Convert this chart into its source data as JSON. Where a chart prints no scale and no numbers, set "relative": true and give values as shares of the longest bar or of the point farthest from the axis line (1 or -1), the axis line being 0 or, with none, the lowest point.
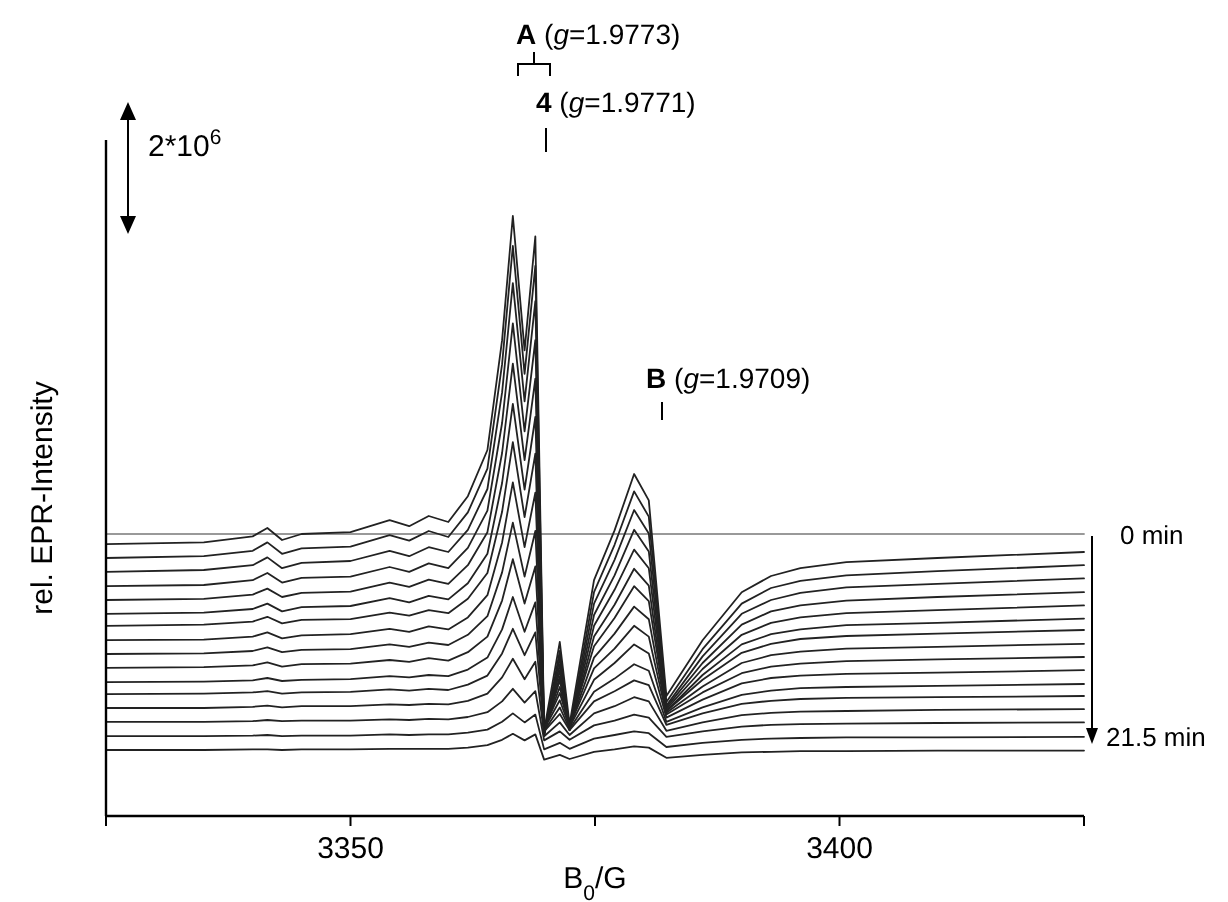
{
  "chart_data": {
    "type": "line",
    "xlabel": "B$_{0}$/G",
    "ylabel": "rel. EPR-Intensity",
    "relative": true,
    "xlim": [
      3325,
      3425
    ],
    "xticks": [
      {
        "value": 3325,
        "label": null
      },
      3350,
      {
        "value": 3375,
        "label": null
      },
      3400,
      {
        "value": 3425,
        "label": null
      }
    ],
    "annotations": [
      "A (g=1.9773)",
      "4 (g=1.9771)",
      "B (g=1.9709)",
      "2*10$^{6}$",
      "0 min",
      "21.5 min"
    ],
    "x": [
      3325,
      3335,
      3340,
      3341.5,
      3343,
      3345,
      3350,
      3354,
      3356,
      3358,
      3360,
      3362,
      3364,
      3365.5,
      3366.6,
      3367.8,
      3368.9,
      3369.8,
      3371.4,
      3372.4,
      3374.9,
      3377,
      3379,
      3380.5,
      3382.3,
      3386,
      3390,
      3393,
      3396,
      3400.7,
      3410,
      3425
    ],
    "series": [
      {
        "color": "#999999",
        "values": [
          0.47,
          0.47,
          0.47,
          0.47,
          0.47,
          0.47,
          0.47,
          0.47,
          0.47,
          0.47,
          0.47,
          0.47,
          0.47,
          0.47,
          0.47,
          0.47,
          0.47,
          0.47,
          0.47,
          0.47,
          0.47,
          0.47,
          0.47,
          0.47,
          0.47,
          0.47,
          0.47,
          0.47,
          0.47,
          0.47,
          0.47,
          0.47
        ]
      },
      {
        "color": "#222222",
        "values": [
          0.453,
          0.456,
          0.466,
          0.48,
          0.46,
          0.47,
          0.473,
          0.493,
          0.483,
          0.5,
          0.49,
          0.533,
          0.61,
          0.793,
          1.0,
          0.776,
          0.966,
          0.143,
          0.29,
          0.153,
          0.393,
          0.476,
          0.57,
          0.526,
          0.2,
          0.293,
          0.373,
          0.4,
          0.413,
          0.423,
          0.43,
          0.44
        ]
      },
      {
        "color": "#222222",
        "values": [
          0.43,
          0.433,
          0.442,
          0.456,
          0.437,
          0.446,
          0.449,
          0.468,
          0.459,
          0.475,
          0.465,
          0.506,
          0.579,
          0.753,
          0.95,
          0.737,
          0.917,
          0.135,
          0.275,
          0.145,
          0.373,
          0.452,
          0.541,
          0.499,
          0.19,
          0.278,
          0.354,
          0.38,
          0.392,
          0.401,
          0.408,
          0.418
        ]
      },
      {
        "color": "#222222",
        "values": [
          0.407,
          0.41,
          0.418,
          0.431,
          0.413,
          0.422,
          0.425,
          0.442,
          0.433,
          0.448,
          0.44,
          0.477,
          0.545,
          0.706,
          0.888,
          0.691,
          0.858,
          0.134,
          0.264,
          0.143,
          0.354,
          0.427,
          0.51,
          0.471,
          0.184,
          0.266,
          0.337,
          0.36,
          0.372,
          0.381,
          0.387,
          0.396
        ]
      },
      {
        "color": "#222222",
        "values": [
          0.383,
          0.385,
          0.393,
          0.405,
          0.389,
          0.397,
          0.399,
          0.415,
          0.407,
          0.421,
          0.413,
          0.447,
          0.509,
          0.655,
          0.821,
          0.641,
          0.793,
          0.135,
          0.253,
          0.143,
          0.335,
          0.401,
          0.477,
          0.441,
          0.181,
          0.255,
          0.319,
          0.341,
          0.351,
          0.359,
          0.365,
          0.373
        ]
      },
      {
        "color": "#222222",
        "values": [
          0.36,
          0.362,
          0.369,
          0.379,
          0.365,
          0.372,
          0.374,
          0.389,
          0.382,
          0.394,
          0.387,
          0.418,
          0.473,
          0.605,
          0.754,
          0.593,
          0.729,
          0.137,
          0.243,
          0.144,
          0.317,
          0.377,
          0.444,
          0.413,
          0.178,
          0.245,
          0.302,
          0.322,
          0.331,
          0.338,
          0.343,
          0.351
        ]
      },
      {
        "color": "#222222",
        "values": [
          0.337,
          0.339,
          0.345,
          0.354,
          0.341,
          0.348,
          0.35,
          0.363,
          0.356,
          0.367,
          0.361,
          0.388,
          0.437,
          0.555,
          0.687,
          0.544,
          0.665,
          0.139,
          0.233,
          0.145,
          0.299,
          0.352,
          0.412,
          0.384,
          0.175,
          0.235,
          0.286,
          0.303,
          0.311,
          0.318,
          0.322,
          0.329
        ]
      },
      {
        "color": "#222222",
        "values": [
          0.317,
          0.319,
          0.324,
          0.332,
          0.321,
          0.327,
          0.328,
          0.339,
          0.334,
          0.343,
          0.338,
          0.362,
          0.405,
          0.507,
          0.623,
          0.498,
          0.604,
          0.143,
          0.226,
          0.149,
          0.283,
          0.33,
          0.383,
          0.358,
          0.175,
          0.227,
          0.272,
          0.287,
          0.295,
          0.3,
          0.304,
          0.31
        ]
      },
      {
        "color": "#222222",
        "values": [
          0.293,
          0.294,
          0.299,
          0.306,
          0.296,
          0.301,
          0.303,
          0.312,
          0.307,
          0.316,
          0.311,
          0.331,
          0.368,
          0.456,
          0.556,
          0.448,
          0.539,
          0.144,
          0.215,
          0.149,
          0.264,
          0.304,
          0.349,
          0.328,
          0.172,
          0.216,
          0.255,
          0.268,
          0.274,
          0.279,
          0.282,
          0.287
        ]
      },
      {
        "color": "#222222",
        "values": [
          0.27,
          0.271,
          0.275,
          0.281,
          0.273,
          0.277,
          0.278,
          0.286,
          0.282,
          0.289,
          0.285,
          0.302,
          0.333,
          0.406,
          0.489,
          0.399,
          0.475,
          0.146,
          0.205,
          0.15,
          0.246,
          0.279,
          0.317,
          0.299,
          0.169,
          0.206,
          0.238,
          0.249,
          0.254,
          0.258,
          0.261,
          0.265
        ]
      },
      {
        "color": "#222222",
        "values": [
          0.247,
          0.248,
          0.251,
          0.256,
          0.249,
          0.253,
          0.254,
          0.26,
          0.257,
          0.263,
          0.259,
          0.273,
          0.299,
          0.359,
          0.428,
          0.354,
          0.416,
          0.145,
          0.193,
          0.148,
          0.227,
          0.255,
          0.286,
          0.271,
          0.164,
          0.194,
          0.221,
          0.23,
          0.234,
          0.237,
          0.239,
          0.243
        ]
      },
      {
        "color": "#222222",
        "values": [
          0.223,
          0.224,
          0.226,
          0.23,
          0.225,
          0.227,
          0.228,
          0.233,
          0.231,
          0.235,
          0.233,
          0.244,
          0.264,
          0.311,
          0.365,
          0.307,
          0.356,
          0.142,
          0.181,
          0.145,
          0.207,
          0.229,
          0.253,
          0.242,
          0.157,
          0.181,
          0.202,
          0.209,
          0.213,
          0.215,
          0.217,
          0.22
        ]
      },
      {
        "color": "#222222",
        "values": [
          0.203,
          0.204,
          0.206,
          0.208,
          0.204,
          0.206,
          0.207,
          0.211,
          0.209,
          0.212,
          0.21,
          0.219,
          0.234,
          0.271,
          0.312,
          0.268,
          0.306,
          0.141,
          0.17,
          0.143,
          0.191,
          0.208,
          0.226,
          0.218,
          0.152,
          0.171,
          0.187,
          0.192,
          0.195,
          0.197,
          0.198,
          0.2
        ]
      },
      {
        "color": "#222222",
        "values": [
          0.18,
          0.18,
          0.182,
          0.184,
          0.181,
          0.183,
          0.183,
          0.186,
          0.185,
          0.187,
          0.186,
          0.192,
          0.204,
          0.231,
          0.262,
          0.228,
          0.257,
          0.133,
          0.156,
          0.135,
          0.171,
          0.183,
          0.198,
          0.191,
          0.142,
          0.156,
          0.168,
          0.172,
          0.174,
          0.175,
          0.177,
          0.178
        ]
      },
      {
        "color": "#222222",
        "values": [
          0.157,
          0.157,
          0.158,
          0.16,
          0.158,
          0.159,
          0.159,
          0.161,
          0.16,
          0.162,
          0.161,
          0.165,
          0.173,
          0.191,
          0.212,
          0.189,
          0.208,
          0.126,
          0.141,
          0.127,
          0.151,
          0.159,
          0.169,
          0.164,
          0.132,
          0.141,
          0.149,
          0.152,
          0.153,
          0.154,
          0.155,
          0.156
        ]
      },
      {
        "color": "#222222",
        "values": [
          0.133,
          0.133,
          0.134,
          0.135,
          0.133,
          0.134,
          0.134,
          0.136,
          0.135,
          0.136,
          0.136,
          0.139,
          0.144,
          0.157,
          0.171,
          0.156,
          0.169,
          0.111,
          0.122,
          0.112,
          0.129,
          0.135,
          0.141,
          0.138,
          0.115,
          0.122,
          0.127,
          0.129,
          0.13,
          0.131,
          0.131,
          0.132
        ]
      },
      {
        "color": "#222222",
        "values": [
          0.11,
          0.11,
          0.111,
          0.111,
          0.11,
          0.111,
          0.111,
          0.112,
          0.112,
          0.112,
          0.112,
          0.114,
          0.118,
          0.127,
          0.137,
          0.126,
          0.136,
          0.094,
          0.102,
          0.095,
          0.107,
          0.111,
          0.116,
          0.114,
          0.097,
          0.102,
          0.106,
          0.107,
          0.108,
          0.108,
          0.109,
          0.109
        ]
      }
    ]
  }
}
